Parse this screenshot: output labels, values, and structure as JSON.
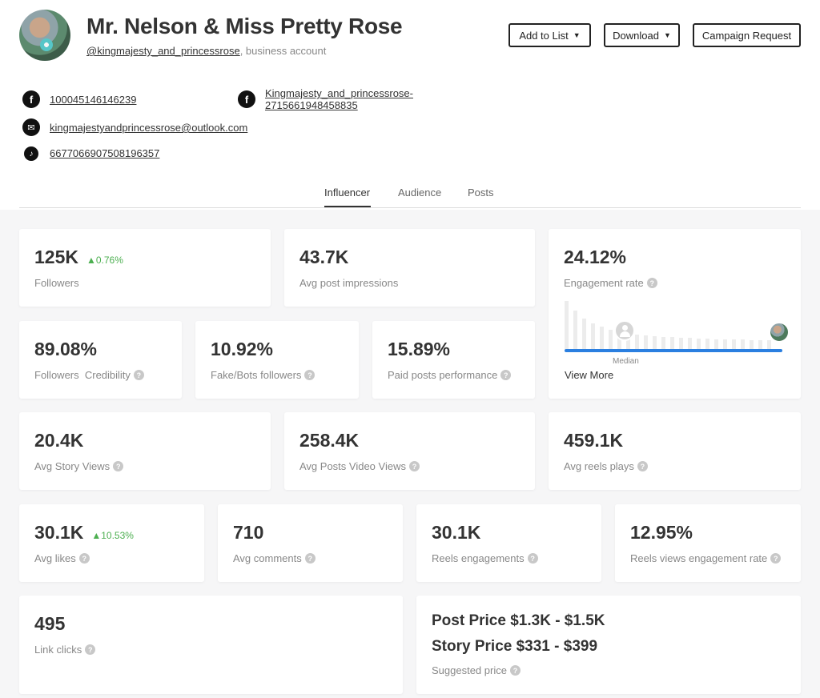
{
  "profile": {
    "name": "Mr. Nelson & Miss Pretty Rose",
    "handle": "@kingmajesty_and_princessrose",
    "account_type": ", business account"
  },
  "buttons": {
    "add_to_list": "Add to List",
    "download": "Download",
    "campaign_request": "Campaign Request"
  },
  "contacts": {
    "facebook_1": "100045146146239",
    "facebook_2_line1": "Kingmajesty_and_princessrose-",
    "facebook_2_line2": "2715661948458835",
    "email": "kingmajestyandprincessrose@outlook.com",
    "tiktok": "6677066907508196357"
  },
  "tabs": [
    "Influencer",
    "Audience",
    "Posts"
  ],
  "metrics": {
    "followers": {
      "value": "125K",
      "delta": "▲0.76%",
      "label": "Followers"
    },
    "avg_post_impressions": {
      "value": "43.7K",
      "label": "Avg post impressions"
    },
    "engagement_rate": {
      "value": "24.12%",
      "label": "Engagement rate",
      "median_label": "Median",
      "view_more": "View More"
    },
    "followers_credibility": {
      "value": "89.08%",
      "label": "Followers  Credibility"
    },
    "fake_bots": {
      "value": "10.92%",
      "label": "Fake/Bots followers"
    },
    "paid_posts": {
      "value": "15.89%",
      "label": "Paid posts performance"
    },
    "avg_story_views": {
      "value": "20.4K",
      "label": "Avg Story Views"
    },
    "avg_posts_video_views": {
      "value": "258.4K",
      "label": "Avg Posts Video Views"
    },
    "avg_reels_plays": {
      "value": "459.1K",
      "label": "Avg reels plays"
    },
    "avg_likes": {
      "value": "30.1K",
      "delta": "▲10.53%",
      "label": "Avg likes"
    },
    "avg_comments": {
      "value": "710",
      "label": "Avg comments"
    },
    "reels_engagements": {
      "value": "30.1K",
      "label": "Reels engagements"
    },
    "reels_views_engagement_rate": {
      "value": "12.95%",
      "label": "Reels views engagement rate"
    },
    "link_clicks": {
      "value": "495",
      "label": "Link clicks"
    },
    "suggested_price": {
      "post_price": "Post Price $1.3K - $1.5K",
      "story_price": "Story Price $331 - $399",
      "label": "Suggested price"
    }
  },
  "help_icon_glyph": "?",
  "colors": {
    "accent_blue": "#2b7fe0",
    "positive_green": "#4caf50"
  }
}
